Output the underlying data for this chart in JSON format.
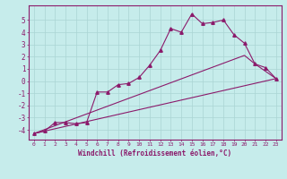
{
  "title": "",
  "xlabel": "Windchill (Refroidissement éolien,°C)",
  "ylabel": "",
  "xlim": [
    -0.5,
    23.5
  ],
  "ylim": [
    -4.8,
    6.2
  ],
  "yticks": [
    -4,
    -3,
    -2,
    -1,
    0,
    1,
    2,
    3,
    4,
    5
  ],
  "xticks": [
    0,
    1,
    2,
    3,
    4,
    5,
    6,
    7,
    8,
    9,
    10,
    11,
    12,
    13,
    14,
    15,
    16,
    17,
    18,
    19,
    20,
    21,
    22,
    23
  ],
  "bg_color": "#c6eceb",
  "grid_color": "#aad4d3",
  "line_color": "#8b1a6b",
  "line1_x": [
    0,
    1,
    2,
    3,
    4,
    5,
    6,
    7,
    8,
    9,
    10,
    11,
    12,
    13,
    14,
    15,
    16,
    17,
    18,
    19,
    20,
    21,
    22,
    23
  ],
  "line1_y": [
    -4.3,
    -4.1,
    -3.4,
    -3.4,
    -3.5,
    -3.4,
    -0.9,
    -0.9,
    -0.3,
    -0.2,
    0.3,
    1.3,
    2.5,
    4.3,
    4.0,
    5.5,
    4.7,
    4.8,
    5.0,
    3.8,
    3.1,
    1.4,
    1.1,
    0.2
  ],
  "line2_x": [
    0,
    23
  ],
  "line2_y": [
    -4.3,
    0.2
  ],
  "line3_x": [
    0,
    20,
    21,
    23
  ],
  "line3_y": [
    -4.3,
    2.1,
    1.4,
    0.2
  ],
  "markersize": 2.5,
  "linewidth": 0.8
}
